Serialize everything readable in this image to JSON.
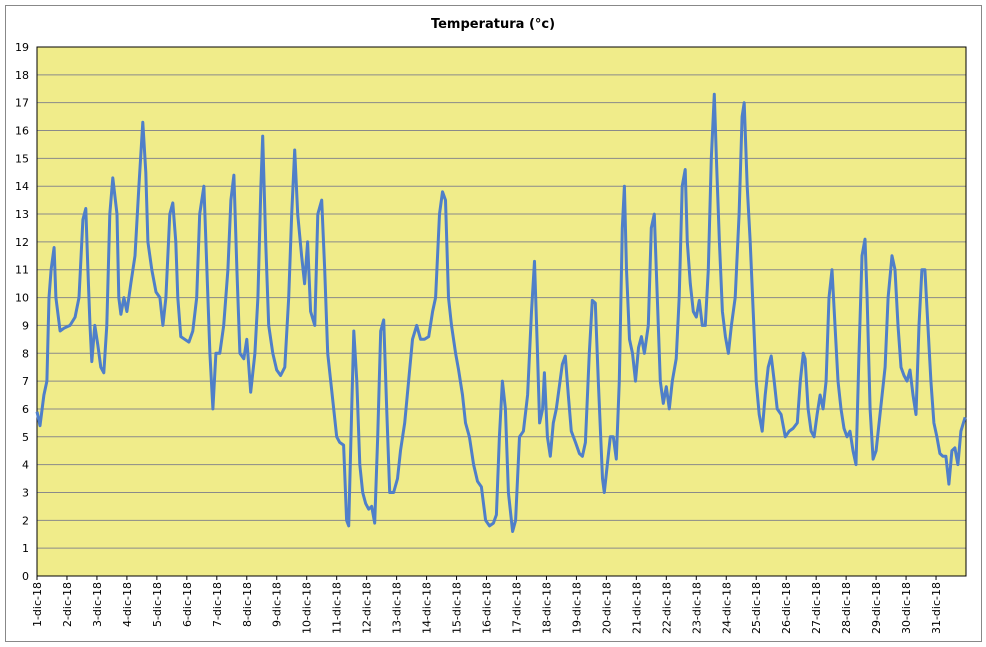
{
  "chart_data": {
    "type": "line",
    "title": "Temperatura (°c)",
    "x": [
      0,
      0.1,
      0.23,
      0.33,
      0.4,
      0.47,
      0.57,
      0.63,
      0.77,
      0.9,
      1.1,
      1.27,
      1.4,
      1.53,
      1.63,
      1.7,
      1.77,
      1.83,
      1.93,
      2.03,
      2.13,
      2.23,
      2.33,
      2.43,
      2.53,
      2.67,
      2.73,
      2.8,
      2.9,
      3,
      3.13,
      3.27,
      3.4,
      3.53,
      3.63,
      3.7,
      3.83,
      3.97,
      4.1,
      4.2,
      4.3,
      4.43,
      4.53,
      4.63,
      4.7,
      4.8,
      4.93,
      5.07,
      5.2,
      5.33,
      5.43,
      5.57,
      5.67,
      5.77,
      5.87,
      5.97,
      6.1,
      6.23,
      6.37,
      6.47,
      6.57,
      6.67,
      6.77,
      6.9,
      7,
      7.13,
      7.27,
      7.37,
      7.47,
      7.53,
      7.63,
      7.73,
      7.87,
      8,
      8.13,
      8.27,
      8.4,
      8.5,
      8.6,
      8.7,
      8.83,
      8.93,
      9.03,
      9.13,
      9.27,
      9.37,
      9.5,
      9.6,
      9.7,
      9.8,
      9.9,
      10,
      10.1,
      10.23,
      10.33,
      10.4,
      10.5,
      10.57,
      10.67,
      10.77,
      10.87,
      10.97,
      11.07,
      11.17,
      11.27,
      11.37,
      11.47,
      11.57,
      11.67,
      11.77,
      11.9,
      12.03,
      12.13,
      12.27,
      12.4,
      12.53,
      12.67,
      12.8,
      12.93,
      13.07,
      13.2,
      13.3,
      13.43,
      13.53,
      13.63,
      13.73,
      13.83,
      13.97,
      14.07,
      14.2,
      14.3,
      14.43,
      14.57,
      14.7,
      14.83,
      14.97,
      15.1,
      15.23,
      15.33,
      15.43,
      15.53,
      15.63,
      15.73,
      15.87,
      15.97,
      16.1,
      16.23,
      16.37,
      16.5,
      16.6,
      16.7,
      16.77,
      16.87,
      16.93,
      17.03,
      17.13,
      17.23,
      17.33,
      17.43,
      17.53,
      17.63,
      17.73,
      17.83,
      17.97,
      18.1,
      18.2,
      18.3,
      18.43,
      18.53,
      18.63,
      18.73,
      18.87,
      18.93,
      19.03,
      19.13,
      19.23,
      19.33,
      19.43,
      19.53,
      19.6,
      19.67,
      19.77,
      19.87,
      19.97,
      20.07,
      20.17,
      20.27,
      20.4,
      20.5,
      20.6,
      20.7,
      20.8,
      20.9,
      21,
      21.1,
      21.2,
      21.33,
      21.43,
      21.53,
      21.63,
      21.7,
      21.8,
      21.9,
      22,
      22.1,
      22.2,
      22.3,
      22.4,
      22.5,
      22.6,
      22.67,
      22.77,
      22.87,
      22.97,
      23.07,
      23.17,
      23.3,
      23.43,
      23.53,
      23.6,
      23.7,
      23.8,
      23.9,
      24,
      24.1,
      24.2,
      24.3,
      24.4,
      24.5,
      24.6,
      24.7,
      24.83,
      24.97,
      25.1,
      25.23,
      25.37,
      25.47,
      25.57,
      25.63,
      25.73,
      25.83,
      25.93,
      26.03,
      26.13,
      26.23,
      26.33,
      26.43,
      26.53,
      26.63,
      26.73,
      26.83,
      26.93,
      27.03,
      27.13,
      27.23,
      27.33,
      27.43,
      27.53,
      27.63,
      27.7,
      27.8,
      27.9,
      28,
      28.1,
      28.2,
      28.3,
      28.4,
      28.53,
      28.63,
      28.73,
      28.83,
      28.93,
      29.03,
      29.13,
      29.23,
      29.33,
      29.43,
      29.53,
      29.63,
      29.73,
      29.83,
      29.93,
      30.03,
      30.13,
      30.23,
      30.33,
      30.43,
      30.53,
      30.63,
      30.73,
      30.83,
      30.97
    ],
    "values": [
      5.9,
      5.4,
      6.5,
      7,
      10,
      11,
      11.8,
      10,
      8.8,
      8.9,
      9,
      9.3,
      10,
      12.8,
      13.2,
      11,
      9,
      7.7,
      9,
      8.3,
      7.5,
      7.3,
      9,
      13,
      14.3,
      13,
      10,
      9.4,
      10,
      9.5,
      10.5,
      11.5,
      14,
      16.3,
      14.5,
      12,
      11,
      10.2,
      10,
      9,
      10,
      13,
      13.4,
      12,
      10,
      8.6,
      8.5,
      8.4,
      8.8,
      10,
      13,
      14,
      11,
      8,
      6,
      8,
      8,
      9,
      11,
      13.5,
      14.4,
      11,
      8,
      7.8,
      8.5,
      6.6,
      8,
      10,
      14,
      15.8,
      12,
      9,
      8,
      7.4,
      7.2,
      7.5,
      10,
      13,
      15.3,
      13,
      11.5,
      10.5,
      12,
      9.5,
      9,
      13,
      13.5,
      11,
      8,
      7,
      6,
      5,
      4.8,
      4.7,
      2,
      1.8,
      6,
      8.8,
      7,
      4,
      3,
      2.6,
      2.4,
      2.5,
      1.9,
      5,
      8.8,
      9.2,
      6,
      3,
      3,
      3.5,
      4.5,
      5.5,
      7,
      8.5,
      9,
      8.5,
      8.5,
      8.6,
      9.5,
      10,
      13,
      13.8,
      13.5,
      10,
      9,
      8,
      7.4,
      6.5,
      5.5,
      5,
      4,
      3.4,
      3.2,
      2,
      1.8,
      1.9,
      2.2,
      5,
      7,
      6,
      3,
      1.6,
      2,
      5,
      5.2,
      6.5,
      9.5,
      11.3,
      8,
      5.5,
      6,
      7.3,
      5,
      4.3,
      5.5,
      6,
      6.8,
      7.6,
      7.9,
      6.5,
      5.2,
      4.8,
      4.4,
      4.3,
      4.8,
      8,
      9.9,
      9.8,
      7,
      3.5,
      3,
      4,
      5,
      5,
      4.2,
      7,
      12.5,
      14,
      11,
      8.5,
      8,
      7,
      8.2,
      8.6,
      8,
      9,
      12.5,
      13,
      10,
      7,
      6.2,
      6.8,
      6,
      7,
      7.8,
      10,
      14,
      14.6,
      12,
      10.5,
      9.5,
      9.3,
      9.9,
      9,
      9,
      11,
      15,
      17.3,
      15,
      12,
      9.5,
      8.6,
      8,
      9,
      10,
      13,
      16.5,
      17,
      14,
      12,
      9.5,
      7,
      5.8,
      5.2,
      6.5,
      7.5,
      7.9,
      7,
      6,
      5.8,
      5,
      5.2,
      5.3,
      5.5,
      7,
      8,
      7.8,
      6,
      5.2,
      5,
      5.8,
      6.5,
      6,
      7,
      10,
      11,
      9,
      7,
      6,
      5.3,
      5,
      5.2,
      4.5,
      4,
      8,
      11.5,
      12.1,
      10,
      6,
      4.2,
      4.5,
      5.5,
      6.5,
      7.5,
      10,
      11.5,
      11,
      9,
      7.5,
      7.2,
      7,
      7.4,
      6.5,
      5.8,
      9,
      11,
      11,
      9,
      7,
      5.5,
      5,
      4.4,
      4.3,
      4.3,
      3.3,
      4.5,
      4.6,
      4,
      5.2,
      5.7
    ],
    "color": "#4f7fc9",
    "background": "#f0ec8a",
    "grid": true,
    "xlim": [
      0,
      31
    ],
    "xticks": [
      {
        "value": 0,
        "label": "1-dic-18"
      },
      {
        "value": 1,
        "label": "2-dic-18"
      },
      {
        "value": 2,
        "label": "3-dic-18"
      },
      {
        "value": 3,
        "label": "4-dic-18"
      },
      {
        "value": 4,
        "label": "5-dic-18"
      },
      {
        "value": 5,
        "label": "6-dic-18"
      },
      {
        "value": 6,
        "label": "7-dic-18"
      },
      {
        "value": 7,
        "label": "8-dic-18"
      },
      {
        "value": 8,
        "label": "9-dic-18"
      },
      {
        "value": 9,
        "label": "10-dic-18"
      },
      {
        "value": 10,
        "label": "11-dic-18"
      },
      {
        "value": 11,
        "label": "12-dic-18"
      },
      {
        "value": 12,
        "label": "13-dic-18"
      },
      {
        "value": 13,
        "label": "14-dic-18"
      },
      {
        "value": 14,
        "label": "15-dic-18"
      },
      {
        "value": 15,
        "label": "16-dic-18"
      },
      {
        "value": 16,
        "label": "17-dic-18"
      },
      {
        "value": 17,
        "label": "18-dic-18"
      },
      {
        "value": 18,
        "label": "19-dic-18"
      },
      {
        "value": 19,
        "label": "20-dic-18"
      },
      {
        "value": 20,
        "label": "21-dic-18"
      },
      {
        "value": 21,
        "label": "22-dic-18"
      },
      {
        "value": 22,
        "label": "23-dic-18"
      },
      {
        "value": 23,
        "label": "24-dic-18"
      },
      {
        "value": 24,
        "label": "25-dic-18"
      },
      {
        "value": 25,
        "label": "26-dic-18"
      },
      {
        "value": 26,
        "label": "27-dic-18"
      },
      {
        "value": 27,
        "label": "28-dic-18"
      },
      {
        "value": 28,
        "label": "29-dic-18"
      },
      {
        "value": 29,
        "label": "30-dic-18"
      },
      {
        "value": 30,
        "label": "31-dic-18"
      }
    ],
    "ylim": [
      0,
      19
    ],
    "yticks": [
      0,
      1,
      2,
      3,
      4,
      5,
      6,
      7,
      8,
      9,
      10,
      11,
      12,
      13,
      14,
      15,
      16,
      17,
      18,
      19
    ]
  }
}
